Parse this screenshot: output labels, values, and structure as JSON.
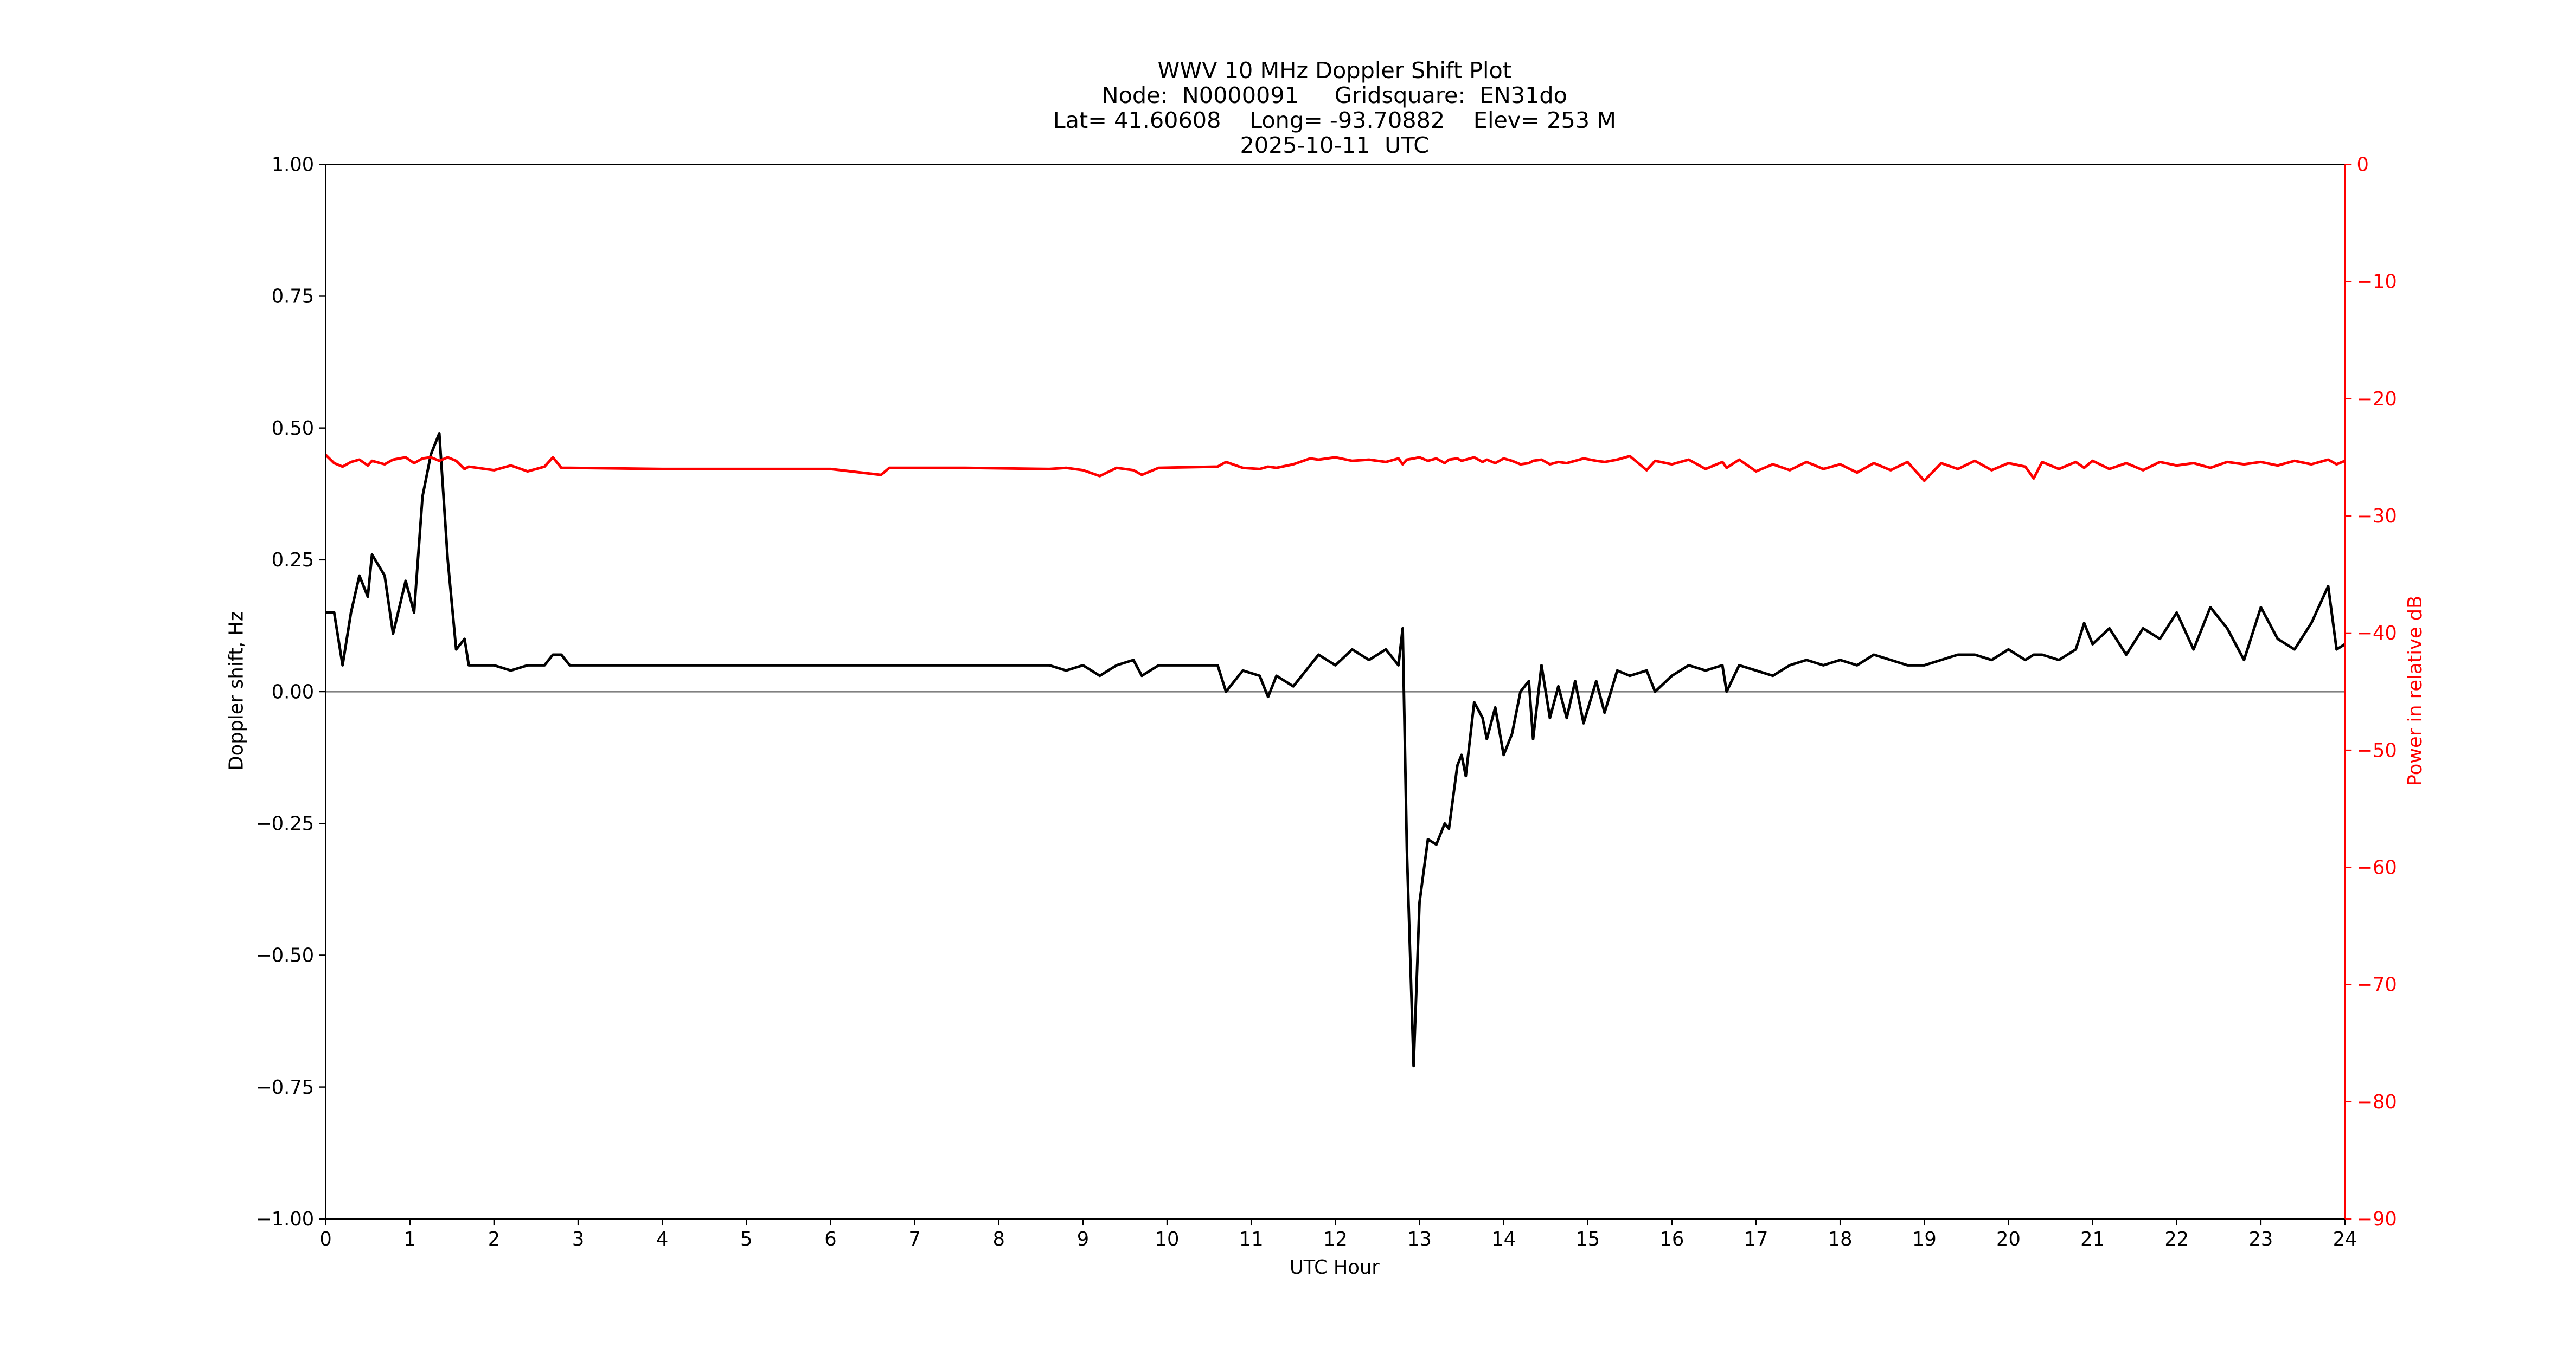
{
  "chart_data": {
    "type": "line",
    "title_lines": [
      "WWV 10 MHz Doppler Shift Plot",
      "Node:  N0000091     Gridsquare:  EN31do",
      "Lat= 41.60608    Long= -93.70882    Elev= 253 M",
      "2025-10-11  UTC"
    ],
    "xlabel": "UTC Hour",
    "ylabel": "Doppler shift, Hz",
    "y2label": "Power in relative dB",
    "y2color": "#ff0000",
    "xlim": [
      0,
      24
    ],
    "xticks": [
      0,
      1,
      2,
      3,
      4,
      5,
      6,
      7,
      8,
      9,
      10,
      11,
      12,
      13,
      14,
      15,
      16,
      17,
      18,
      19,
      20,
      21,
      22,
      23,
      24
    ],
    "ylim": [
      -1,
      1
    ],
    "yticks": [
      {
        "value": -1,
        "label": "−1.00"
      },
      {
        "value": -0.75,
        "label": "−0.75"
      },
      {
        "value": -0.5,
        "label": "−0.50"
      },
      {
        "value": -0.25,
        "label": "−0.25"
      },
      {
        "value": 0,
        "label": "0.00"
      },
      {
        "value": 0.25,
        "label": "0.25"
      },
      {
        "value": 0.5,
        "label": "0.50"
      },
      {
        "value": 0.75,
        "label": "0.75"
      },
      {
        "value": 1,
        "label": "1.00"
      }
    ],
    "y2lim": [
      -90,
      0
    ],
    "y2ticks": [
      {
        "value": -90,
        "label": "−90"
      },
      {
        "value": -80,
        "label": "−80"
      },
      {
        "value": -70,
        "label": "−70"
      },
      {
        "value": -60,
        "label": "−60"
      },
      {
        "value": -50,
        "label": "−50"
      },
      {
        "value": -40,
        "label": "−40"
      },
      {
        "value": -30,
        "label": "−30"
      },
      {
        "value": -20,
        "label": "−20"
      },
      {
        "value": -10,
        "label": "−10"
      },
      0
    ],
    "hline": 0,
    "x": [
      0,
      0.1,
      0.2,
      0.3,
      0.4,
      0.5,
      0.55,
      0.7,
      0.8,
      0.95,
      1.05,
      1.15,
      1.25,
      1.35,
      1.45,
      1.55,
      1.65,
      1.7,
      2.0,
      2.2,
      2.4,
      2.6,
      2.7,
      2.8,
      2.9,
      4.0,
      5.0,
      6.0,
      6.6,
      6.7,
      7.6,
      8.6,
      8.8,
      9.0,
      9.2,
      9.4,
      9.6,
      9.7,
      9.9,
      10.6,
      10.7,
      10.9,
      11.1,
      11.2,
      11.3,
      11.5,
      11.7,
      11.8,
      12.0,
      12.2,
      12.4,
      12.6,
      12.75,
      12.8,
      12.85,
      12.93,
      13.0,
      13.1,
      13.2,
      13.3,
      13.35,
      13.45,
      13.5,
      13.55,
      13.65,
      13.75,
      13.8,
      13.9,
      14.0,
      14.1,
      14.2,
      14.3,
      14.35,
      14.45,
      14.55,
      14.65,
      14.75,
      14.85,
      14.95,
      15.1,
      15.2,
      15.35,
      15.5,
      15.7,
      15.8,
      16.0,
      16.2,
      16.4,
      16.6,
      16.65,
      16.8,
      17.0,
      17.2,
      17.4,
      17.6,
      17.8,
      18.0,
      18.2,
      18.4,
      18.6,
      18.8,
      19.0,
      19.2,
      19.4,
      19.6,
      19.8,
      20.0,
      20.2,
      20.3,
      20.4,
      20.6,
      20.8,
      20.9,
      21.0,
      21.2,
      21.4,
      21.6,
      21.8,
      22.0,
      22.2,
      22.4,
      22.6,
      22.8,
      23.0,
      23.2,
      23.4,
      23.6,
      23.8,
      23.9,
      24.0
    ],
    "series": [
      {
        "color": "#000000",
        "values": [
          0.15,
          0.15,
          0.05,
          0.15,
          0.22,
          0.18,
          0.26,
          0.22,
          0.11,
          0.21,
          0.15,
          0.37,
          0.45,
          0.49,
          0.25,
          0.08,
          0.1,
          0.05,
          0.05,
          0.04,
          0.05,
          0.05,
          0.07,
          0.07,
          0.05,
          0.05,
          0.05,
          0.05,
          0.05,
          0.05,
          0.05,
          0.05,
          0.04,
          0.05,
          0.03,
          0.05,
          0.06,
          0.03,
          0.05,
          0.05,
          0.0,
          0.04,
          0.03,
          -0.01,
          0.03,
          0.01,
          0.05,
          0.07,
          0.05,
          0.08,
          0.06,
          0.08,
          0.05,
          0.12,
          -0.3,
          -0.71,
          -0.4,
          -0.28,
          -0.29,
          -0.25,
          -0.26,
          -0.14,
          -0.12,
          -0.16,
          -0.02,
          -0.05,
          -0.09,
          -0.03,
          -0.12,
          -0.08,
          0.0,
          0.02,
          -0.09,
          0.05,
          -0.05,
          0.01,
          -0.05,
          0.02,
          -0.06,
          0.02,
          -0.04,
          0.04,
          0.03,
          0.04,
          0.0,
          0.03,
          0.05,
          0.04,
          0.05,
          0.0,
          0.05,
          0.04,
          0.03,
          0.05,
          0.06,
          0.05,
          0.06,
          0.05,
          0.07,
          0.06,
          0.05,
          0.05,
          0.06,
          0.07,
          0.07,
          0.06,
          0.08,
          0.06,
          0.07,
          0.07,
          0.06,
          0.08,
          0.13,
          0.09,
          0.12,
          0.07,
          0.12,
          0.1,
          0.15,
          0.08,
          0.16,
          0.12,
          0.06,
          0.16,
          0.1,
          0.08,
          0.13,
          0.2,
          0.08,
          0.09
        ]
      },
      {
        "color": "#ff0000",
        "axis": "y2",
        "values": [
          -24.8,
          -25.5,
          -25.8,
          -25.4,
          -25.2,
          -25.7,
          -25.3,
          -25.6,
          -25.2,
          -25.0,
          -25.5,
          -25.1,
          -25.0,
          -25.3,
          -25.0,
          -25.3,
          -26.0,
          -25.8,
          -26.1,
          -25.7,
          -26.2,
          -25.8,
          -25.0,
          -25.9,
          -25.9,
          -26.0,
          -26.0,
          -26.0,
          -26.5,
          -25.9,
          -25.9,
          -26.0,
          -25.9,
          -26.1,
          -26.6,
          -25.9,
          -26.1,
          -26.5,
          -25.9,
          -25.8,
          -25.4,
          -25.9,
          -26.0,
          -25.8,
          -25.9,
          -25.6,
          -25.1,
          -25.2,
          -25.0,
          -25.3,
          -25.2,
          -25.4,
          -25.1,
          -25.6,
          -25.2,
          -25.1,
          -25.0,
          -25.3,
          -25.1,
          -25.5,
          -25.2,
          -25.1,
          -25.3,
          -25.2,
          -25.0,
          -25.4,
          -25.2,
          -25.5,
          -25.1,
          -25.3,
          -25.6,
          -25.5,
          -25.3,
          -25.2,
          -25.6,
          -25.4,
          -25.5,
          -25.3,
          -25.1,
          -25.3,
          -25.4,
          -25.2,
          -24.9,
          -26.1,
          -25.3,
          -25.6,
          -25.2,
          -26.0,
          -25.4,
          -25.9,
          -25.2,
          -26.2,
          -25.6,
          -26.1,
          -25.4,
          -26.0,
          -25.6,
          -26.3,
          -25.5,
          -26.1,
          -25.4,
          -27.0,
          -25.5,
          -26.0,
          -25.3,
          -26.1,
          -25.5,
          -25.8,
          -26.8,
          -25.4,
          -26.0,
          -25.4,
          -25.9,
          -25.3,
          -26.0,
          -25.5,
          -26.1,
          -25.4,
          -25.7,
          -25.5,
          -25.9,
          -25.4,
          -25.6,
          -25.4,
          -25.7,
          -25.3,
          -25.6,
          -25.2,
          -25.6,
          -25.3
        ]
      }
    ]
  }
}
